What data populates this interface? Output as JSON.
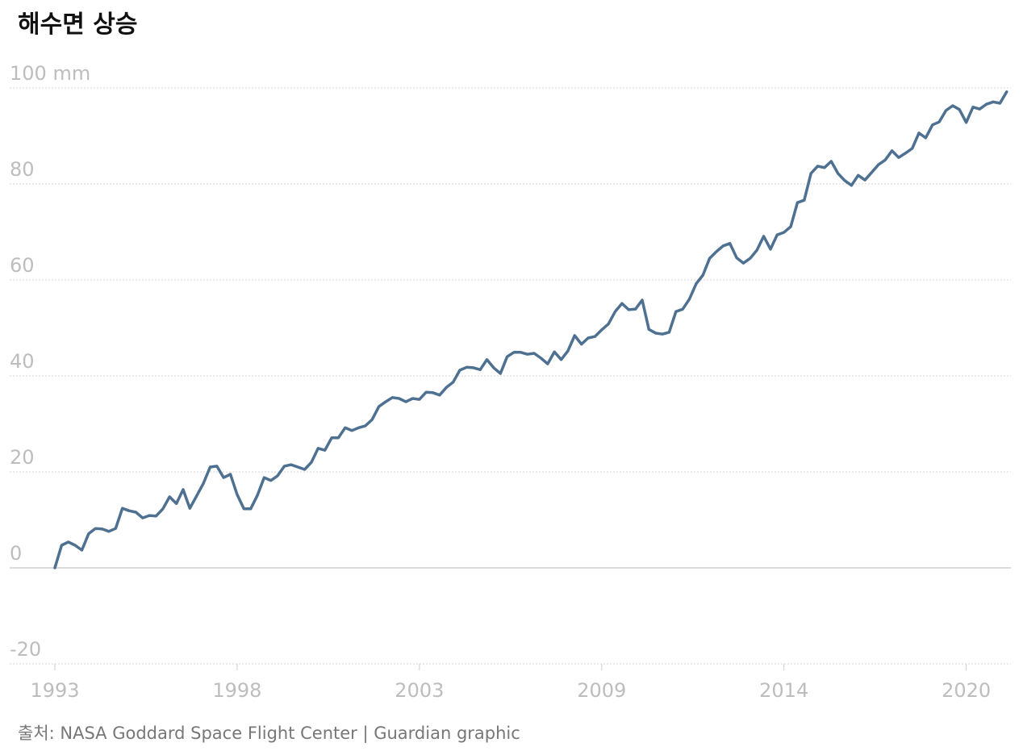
{
  "chart_data": {
    "type": "line",
    "title": "해수면 상승",
    "source": "출처: NASA Goddard Space Flight Center  | Guardian graphic",
    "xlim": [
      1993,
      2021.3
    ],
    "ylim": [
      -20,
      100
    ],
    "xticks": [
      {
        "value": 1993,
        "label": "1993"
      },
      {
        "value": 1998.4,
        "label": "1998"
      },
      {
        "value": 2003.8,
        "label": "2003"
      },
      {
        "value": 2009.2,
        "label": "2009"
      },
      {
        "value": 2014.6,
        "label": "2014"
      },
      {
        "value": 2020,
        "label": "2020"
      }
    ],
    "yticks": [
      -20,
      0,
      20,
      40,
      60,
      80,
      {
        "value": 100,
        "label": "100 mm"
      }
    ],
    "grid": true,
    "x": [
      1993,
      1993.2,
      1993.4,
      1993.6,
      1993.8,
      1994,
      1994.2,
      1994.4,
      1994.6,
      1994.8,
      1995,
      1995.2,
      1995.4,
      1995.6,
      1995.8,
      1996,
      1996.2,
      1996.4,
      1996.6,
      1996.8,
      1997,
      1997.2,
      1997.4,
      1997.6,
      1997.8,
      1998,
      1998.2,
      1998.4,
      1998.6,
      1998.8,
      1999,
      1999.2,
      1999.4,
      1999.6,
      1999.8,
      2000,
      2000.2,
      2000.4,
      2000.6,
      2000.8,
      2001,
      2001.2,
      2001.4,
      2001.6,
      2001.8,
      2002,
      2002.2,
      2002.4,
      2002.6,
      2002.8,
      2003,
      2003.2,
      2003.4,
      2003.6,
      2003.8,
      2004,
      2004.2,
      2004.4,
      2004.6,
      2004.8,
      2005,
      2005.2,
      2005.4,
      2005.6,
      2005.8,
      2006,
      2006.2,
      2006.4,
      2006.6,
      2006.8,
      2007,
      2007.2,
      2007.4,
      2007.6,
      2007.8,
      2008,
      2008.2,
      2008.4,
      2008.6,
      2008.8,
      2009,
      2009.2,
      2009.4,
      2009.6,
      2009.8,
      2010,
      2010.2,
      2010.4,
      2010.6,
      2010.8,
      2011,
      2011.2,
      2011.4,
      2011.6,
      2011.8,
      2012,
      2012.2,
      2012.4,
      2012.6,
      2012.8,
      2013,
      2013.2,
      2013.4,
      2013.6,
      2013.8,
      2014,
      2014.2,
      2014.4,
      2014.6,
      2014.8,
      2015,
      2015.2,
      2015.4,
      2015.6,
      2015.8,
      2016,
      2016.2,
      2016.4,
      2016.6,
      2016.8,
      2017,
      2017.2,
      2017.4,
      2017.6,
      2017.8,
      2018,
      2018.2,
      2018.4,
      2018.6,
      2018.8,
      2019,
      2019.2,
      2019.4,
      2019.6,
      2019.8,
      2020,
      2020.2,
      2020.4,
      2020.6,
      2020.8,
      2021,
      2021.2
    ],
    "series": [
      {
        "name": "해수면",
        "color": "#4e7091",
        "values": [
          0,
          4.7,
          5.4,
          4.7,
          3.7,
          7.1,
          8.2,
          8.1,
          7.6,
          8.2,
          12.4,
          11.9,
          11.6,
          10.4,
          10.9,
          10.8,
          12.3,
          14.8,
          13.4,
          16.3,
          12.4,
          15.0,
          17.6,
          21.0,
          21.2,
          18.8,
          19.5,
          15.3,
          12.3,
          12.3,
          15.1,
          18.8,
          18.2,
          19.2,
          21.2,
          21.5,
          21.0,
          20.5,
          22.0,
          24.9,
          24.5,
          27.1,
          27.1,
          29.2,
          28.6,
          29.2,
          29.6,
          30.9,
          33.6,
          34.6,
          35.5,
          35.3,
          34.6,
          35.3,
          35.1,
          36.6,
          36.5,
          36.0,
          37.6,
          38.7,
          41.2,
          41.8,
          41.7,
          41.3,
          43.4,
          41.7,
          40.5,
          44.0,
          44.9,
          44.9,
          44.5,
          44.7,
          43.7,
          42.5,
          45.0,
          43.4,
          45.2,
          48.4,
          46.6,
          47.9,
          48.2,
          49.6,
          50.8,
          53.4,
          55.1,
          53.8,
          53.9,
          55.8,
          49.7,
          48.9,
          48.7,
          49.1,
          53.4,
          53.9,
          56.0,
          59.2,
          61.0,
          64.5,
          65.9,
          67.1,
          67.6,
          64.6,
          63.5,
          64.5,
          66.2,
          69.1,
          66.4,
          69.4,
          69.9,
          71.1,
          76.1,
          76.6,
          82.2,
          83.7,
          83.4,
          84.7,
          82.2,
          80.7,
          79.7,
          81.8,
          80.8,
          82.4,
          84.0,
          85.0,
          86.9,
          85.5,
          86.4,
          87.4,
          90.6,
          89.6,
          92.3,
          92.9,
          95.3,
          96.3,
          95.5,
          92.8,
          96.0,
          95.6,
          96.6,
          97.1,
          96.8,
          99.2
        ]
      }
    ]
  }
}
